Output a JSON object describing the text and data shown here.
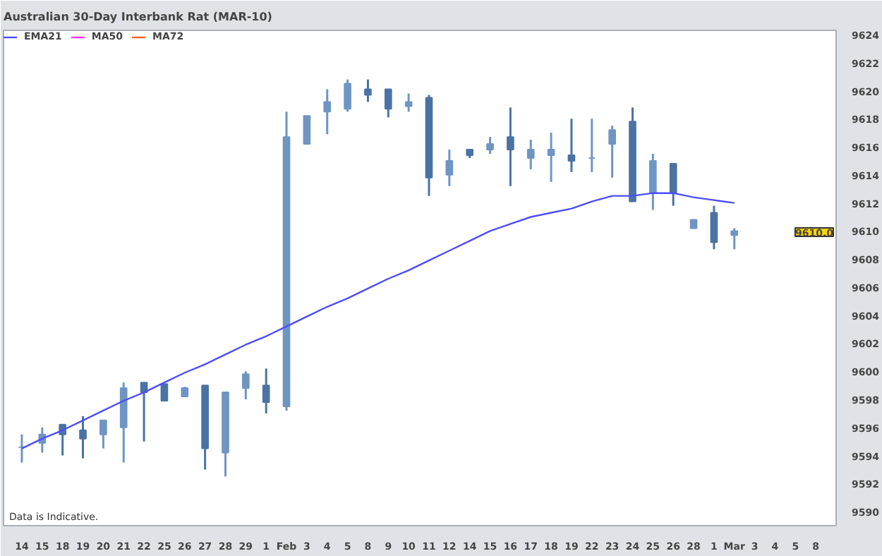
{
  "chart_data": {
    "type": "candlestick",
    "title": "Australian 30-Day Interbank Rat (MAR-10)",
    "categories": [
      "14",
      "15",
      "18",
      "19",
      "20",
      "21",
      "22",
      "25",
      "26",
      "27",
      "28",
      "29",
      "1",
      "Feb",
      "3",
      "4",
      "5",
      "8",
      "9",
      "10",
      "11",
      "12",
      "14",
      "15",
      "16",
      "17",
      "18",
      "19",
      "22",
      "23",
      "24",
      "25",
      "26",
      "28",
      "1",
      "Mar",
      "3",
      "4",
      "5",
      "8"
    ],
    "ohlc": [
      [
        9594.6,
        9595.5,
        9593.5,
        9594.6
      ],
      [
        9594.9,
        9596.0,
        9594.2,
        9595.5
      ],
      [
        9596.2,
        9596.2,
        9594.0,
        9595.5
      ],
      [
        9595.8,
        9596.8,
        9593.8,
        9595.2
      ],
      [
        9595.5,
        9596.5,
        9594.5,
        9596.5
      ],
      [
        9596.0,
        9599.2,
        9593.5,
        9598.8
      ],
      [
        9599.2,
        9599.2,
        9595.0,
        9598.5
      ],
      [
        9599.1,
        9599.1,
        9597.9,
        9597.9
      ],
      [
        9598.2,
        9598.9,
        9598.2,
        9598.8
      ],
      [
        9599.0,
        9599.0,
        9593.0,
        9594.5
      ],
      [
        9594.2,
        9598.5,
        9592.5,
        9598.5
      ],
      [
        9598.8,
        9600.0,
        9598.0,
        9599.8
      ],
      [
        9599.0,
        9600.2,
        9597.0,
        9597.8
      ],
      [
        9597.5,
        9618.5,
        9597.2,
        9616.7
      ],
      [
        9616.2,
        9618.2,
        9616.2,
        9618.2
      ],
      [
        9618.5,
        9620.1,
        9616.9,
        9619.2
      ],
      [
        9618.7,
        9620.8,
        9618.5,
        9620.5
      ],
      [
        9620.1,
        9620.8,
        9619.2,
        9619.7
      ],
      [
        9620.1,
        9620.1,
        9618.1,
        9618.7
      ],
      [
        9618.9,
        9619.8,
        9618.5,
        9619.2
      ],
      [
        9619.5,
        9619.7,
        9612.5,
        9613.8
      ],
      [
        9614.0,
        9615.8,
        9613.2,
        9615.0
      ],
      [
        9615.8,
        9615.8,
        9615.2,
        9615.4
      ],
      [
        9615.8,
        9616.7,
        9615.5,
        9616.2
      ],
      [
        9616.7,
        9618.8,
        9613.2,
        9615.8
      ],
      [
        9615.2,
        9616.5,
        9614.4,
        9615.8
      ],
      [
        9615.4,
        9617.0,
        9613.5,
        9615.8
      ],
      [
        9615.4,
        9618.0,
        9614.2,
        9615.0
      ],
      [
        9615.2,
        9618.0,
        9614.2,
        9615.2
      ],
      [
        9616.2,
        9617.5,
        9613.8,
        9617.2
      ],
      [
        9617.8,
        9618.8,
        9612.1,
        9612.1
      ],
      [
        9612.7,
        9615.5,
        9611.5,
        9615.0
      ],
      [
        9614.8,
        9614.8,
        9611.8,
        9612.7
      ],
      [
        9610.2,
        9610.8,
        9610.2,
        9610.8
      ],
      [
        9611.3,
        9611.8,
        9608.7,
        9609.2
      ],
      [
        9609.7,
        9610.2,
        9608.7,
        9610.0
      ],
      null,
      null,
      null,
      null
    ],
    "colors": [
      "#6f95c2",
      "#6f95c2",
      "#4a73a3",
      "#4a73a3",
      "#6f95c2",
      "#6f95c2",
      "#4a73a3",
      "#4a73a3",
      "#6f95c2",
      "#4a73a3",
      "#6f95c2",
      "#6f95c2",
      "#4a73a3",
      "#6f95c2",
      "#6f95c2",
      "#6f95c2",
      "#6f95c2",
      "#4a73a3",
      "#4a73a3",
      "#6f95c2",
      "#4a73a3",
      "#6f95c2",
      "#4a73a3",
      "#6f95c2",
      "#4a73a3",
      "#6f95c2",
      "#6f95c2",
      "#4a73a3",
      "#6f95c2",
      "#6f95c2",
      "#4a73a3",
      "#6f95c2",
      "#4a73a3",
      "#6f95c2",
      "#4a73a3",
      "#6f95c2",
      null,
      null,
      null,
      null
    ],
    "series": [
      {
        "name": "EMA21",
        "type": "line",
        "color": "#4d4dff",
        "values": [
          9594.5,
          9595.2,
          9595.8,
          9596.5,
          9597.2,
          9597.9,
          9598.5,
          9599.2,
          9599.9,
          9600.5,
          9601.2,
          9601.9,
          9602.5,
          9603.2,
          9603.9,
          9604.6,
          9605.2,
          9605.9,
          9606.6,
          9607.2,
          9607.9,
          9608.6,
          9609.3,
          9610.0,
          9610.5,
          9611.0,
          9611.3,
          9611.6,
          9612.1,
          9612.5,
          9612.5,
          9612.7,
          9612.7,
          9612.4,
          9612.2,
          9612.0,
          null,
          null,
          null,
          null
        ]
      },
      {
        "name": "MA50",
        "type": "line",
        "color": "#ff33ff",
        "values": [
          null,
          null,
          null,
          null,
          null,
          null,
          null,
          null,
          null,
          null,
          null,
          null,
          null,
          null,
          null,
          null,
          null,
          null,
          null,
          null,
          null,
          null,
          null,
          null,
          null,
          null,
          null,
          null,
          null,
          null,
          null,
          null,
          null,
          null,
          null,
          null,
          null,
          null,
          null,
          null
        ]
      },
      {
        "name": "MA72",
        "type": "line",
        "color": "#ff6622",
        "values": [
          null,
          null,
          null,
          null,
          null,
          null,
          null,
          null,
          null,
          null,
          null,
          null,
          null,
          null,
          null,
          null,
          null,
          null,
          null,
          null,
          null,
          null,
          null,
          null,
          null,
          null,
          null,
          null,
          null,
          null,
          null,
          null,
          null,
          null,
          null,
          null,
          null,
          null,
          null,
          null
        ]
      }
    ],
    "ylim": [
      9589,
      9624.3
    ],
    "yticks": [
      9590,
      9592,
      9594,
      9596,
      9598,
      9600,
      9602,
      9604,
      9606,
      9608,
      9610,
      9612,
      9614,
      9616,
      9618,
      9620,
      9622,
      9624
    ],
    "legend": "top left",
    "annotations": [
      "9610.0",
      "Data is Indicative."
    ]
  }
}
